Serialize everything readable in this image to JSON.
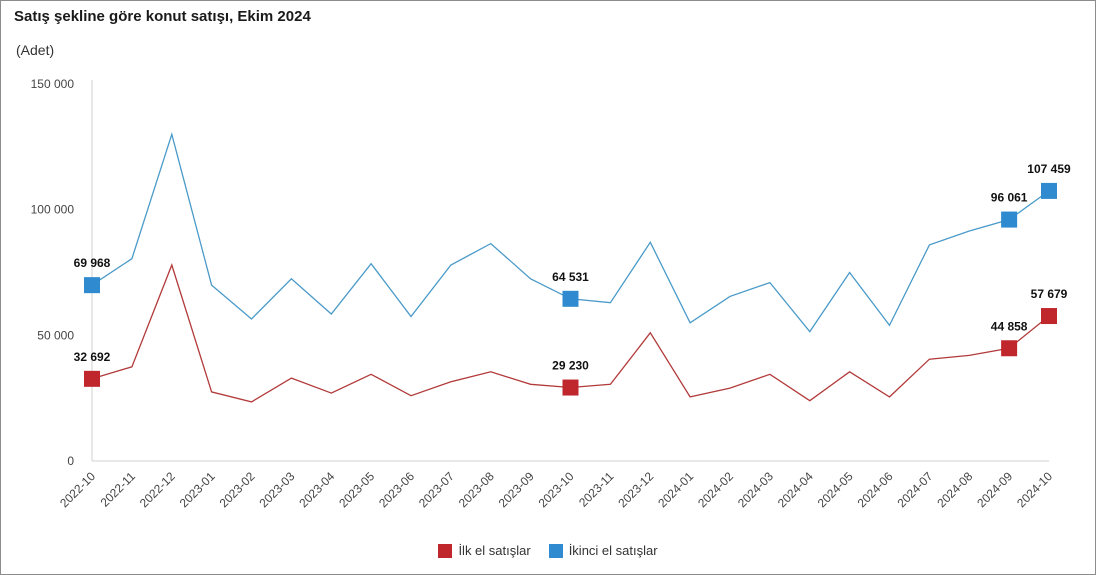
{
  "title": "Satış şekline göre konut satışı, Ekim 2024",
  "unit": "(Adet)",
  "colors": {
    "ilk": "#C0272D",
    "ikinci": "#2F8AD0",
    "ilk_line": "#B23A3A",
    "ikinci_line": "#4A9AC8"
  },
  "chart_data": {
    "type": "line",
    "title": "Satış şekline göre konut satışı, Ekim 2024",
    "ylabel": "(Adet)",
    "xlabel": "",
    "ylim": [
      0,
      150000
    ],
    "yticks": [
      0,
      50000,
      100000,
      150000
    ],
    "ytick_labels": [
      "0",
      "50 000",
      "100 000",
      "150 000"
    ],
    "grid": false,
    "legend_position": "bottom",
    "categories": [
      "2022-10",
      "2022-11",
      "2022-12",
      "2023-01",
      "2023-02",
      "2023-03",
      "2023-04",
      "2023-05",
      "2023-06",
      "2023-07",
      "2023-08",
      "2023-09",
      "2023-10",
      "2023-11",
      "2023-12",
      "2024-01",
      "2024-02",
      "2024-03",
      "2024-04",
      "2024-05",
      "2024-06",
      "2024-07",
      "2024-08",
      "2024-09",
      "2024-10"
    ],
    "series": [
      {
        "name": "İlk el satışlar",
        "values": [
          32692,
          37500,
          78000,
          27500,
          23500,
          33000,
          27000,
          34500,
          26000,
          31500,
          35500,
          30500,
          29230,
          30500,
          51000,
          25500,
          29000,
          34500,
          24000,
          35500,
          25500,
          40500,
          42000,
          44858,
          57679
        ],
        "labels": [
          {
            "index": 0,
            "text": "32 692"
          },
          {
            "index": 12,
            "text": "29 230"
          },
          {
            "index": 23,
            "text": "44 858"
          },
          {
            "index": 24,
            "text": "57 679"
          }
        ]
      },
      {
        "name": "İkinci el satışlar",
        "values": [
          69968,
          80500,
          130000,
          70000,
          56500,
          72500,
          58500,
          78500,
          57500,
          78000,
          86500,
          72500,
          64531,
          63000,
          87000,
          55000,
          65500,
          71000,
          51500,
          75000,
          54000,
          86000,
          91500,
          96061,
          107459
        ],
        "labels": [
          {
            "index": 0,
            "text": "69 968"
          },
          {
            "index": 12,
            "text": "64 531"
          },
          {
            "index": 23,
            "text": "96 061"
          },
          {
            "index": 24,
            "text": "107 459"
          }
        ]
      }
    ]
  }
}
